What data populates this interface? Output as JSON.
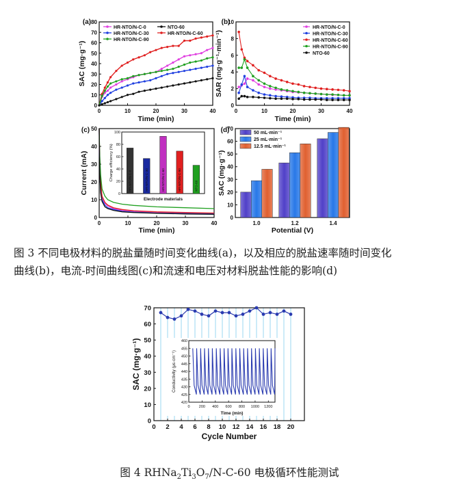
{
  "caption3": {
    "line1": "图 3  不同电极材料的脱盐量随时间变化曲线(a)，以及相应的脱盐速率随时间变化",
    "line2": "曲线(b)，电流-时间曲线图(c)和流速和电压对材料脱盐性能的影响(d)"
  },
  "caption4": {
    "prefix": "图 4 RHNa",
    "sub1": "2",
    "mid1": "Ti",
    "sub2": "3",
    "mid2": "O",
    "sub3": "7",
    "suffix": "/N-C-60 电极循环性能测试"
  },
  "colors": {
    "HR-NTO/N-C-0": "#e040e0",
    "HR-NTO/N-C-30": "#2040e0",
    "HR-NTO/N-C-60": "#e02020",
    "HR-NTO/N-C-90": "#20a020",
    "NTO-60": "#111111",
    "cycle": "#2a3bb0",
    "panel_d_50": "#5040c8",
    "panel_d_25": "#2878e8",
    "panel_d_12.5": "#e06030"
  },
  "chart_data": [
    {
      "id": "a",
      "panel_label": "(a)",
      "type": "line",
      "xlabel": "Time (min)",
      "ylabel": "SAC (mg·g⁻¹)",
      "xlim": [
        0,
        40
      ],
      "ylim": [
        0,
        80
      ],
      "xticks": [
        0,
        10,
        20,
        30,
        40
      ],
      "yticks": [
        0,
        10,
        20,
        30,
        40,
        50,
        60,
        70,
        80
      ],
      "legend_position": "top-left",
      "series": [
        {
          "name": "HR-NTO/N-C-0",
          "color": "#e040e0",
          "x": [
            0,
            1,
            2,
            3,
            4,
            6,
            8,
            10,
            12,
            14,
            16,
            18,
            20,
            22,
            24,
            26,
            28,
            30,
            32,
            34,
            36,
            38,
            40
          ],
          "y": [
            0,
            8,
            12,
            14,
            17,
            20,
            23,
            25,
            27,
            29,
            30,
            31,
            32,
            35,
            38,
            41,
            44,
            47,
            48,
            49,
            50,
            53,
            55
          ]
        },
        {
          "name": "HR-NTO/N-C-30",
          "color": "#2040e0",
          "x": [
            0,
            1,
            2,
            3,
            4,
            6,
            8,
            10,
            12,
            14,
            16,
            18,
            20,
            22,
            24,
            26,
            28,
            30,
            32,
            34,
            36,
            38,
            40
          ],
          "y": [
            0,
            4,
            7,
            10,
            12,
            15,
            17,
            19,
            21,
            22,
            23,
            24,
            26,
            28,
            30,
            31,
            32,
            33,
            34,
            35,
            36,
            37,
            38
          ]
        },
        {
          "name": "HR-NTO/N-C-60",
          "color": "#e02020",
          "x": [
            0,
            1,
            2,
            3,
            4,
            6,
            8,
            10,
            12,
            14,
            16,
            18,
            20,
            22,
            24,
            26,
            28,
            30,
            32,
            34,
            36,
            38,
            40
          ],
          "y": [
            0,
            11,
            17,
            22,
            27,
            33,
            38,
            41,
            44,
            46,
            48,
            51,
            53,
            55,
            56,
            57,
            57,
            62,
            62,
            64,
            65,
            66,
            67
          ]
        },
        {
          "name": "HR-NTO/N-C-90",
          "color": "#20a020",
          "x": [
            0,
            1,
            2,
            3,
            4,
            6,
            8,
            10,
            12,
            14,
            16,
            18,
            20,
            22,
            24,
            26,
            28,
            30,
            32,
            34,
            36,
            38,
            40
          ],
          "y": [
            0,
            9,
            14,
            18,
            21,
            23,
            25,
            26,
            28,
            29,
            30,
            31,
            32,
            33,
            34,
            35,
            37,
            39,
            41,
            42,
            43,
            45,
            46
          ]
        },
        {
          "name": "NTO-60",
          "color": "#111111",
          "x": [
            0,
            1,
            2,
            3,
            4,
            6,
            8,
            10,
            12,
            14,
            16,
            18,
            20,
            22,
            24,
            26,
            28,
            30,
            32,
            34,
            36,
            38,
            40
          ],
          "y": [
            0,
            1,
            2,
            3,
            4,
            6,
            8,
            10,
            11,
            13,
            14,
            15,
            16,
            17,
            18,
            19,
            20,
            21,
            22,
            23,
            24,
            25,
            26
          ]
        }
      ]
    },
    {
      "id": "b",
      "panel_label": "(b)",
      "type": "line",
      "xlabel": "Time (min)",
      "ylabel": "SAR (mg·g⁻¹·min⁻¹)",
      "xlim": [
        0,
        40
      ],
      "ylim": [
        0,
        10
      ],
      "xticks": [
        0,
        10,
        20,
        30,
        40
      ],
      "yticks": [
        0,
        2,
        4,
        6,
        8,
        10
      ],
      "legend_position": "top-right",
      "series": [
        {
          "name": "HR-NTO/N-C-0",
          "color": "#e040e0",
          "x": [
            1,
            2,
            3,
            4,
            6,
            8,
            10,
            12,
            14,
            16,
            18,
            20,
            22,
            24,
            26,
            28,
            30,
            32,
            34,
            36,
            38,
            40
          ],
          "y": [
            2.2,
            2.4,
            2.6,
            3.2,
            3.0,
            2.5,
            2.2,
            2.0,
            1.9,
            1.8,
            1.7,
            1.6,
            1.55,
            1.5,
            1.45,
            1.4,
            1.35,
            1.3,
            1.25,
            1.25,
            1.2,
            1.2
          ]
        },
        {
          "name": "HR-NTO/N-C-30",
          "color": "#2040e0",
          "x": [
            1,
            2,
            3,
            4,
            6,
            8,
            10,
            12,
            14,
            16,
            18,
            20,
            22,
            24,
            26,
            28,
            30,
            32,
            34,
            36,
            38,
            40
          ],
          "y": [
            1.5,
            2.5,
            3.5,
            2.2,
            1.8,
            1.5,
            1.3,
            1.2,
            1.1,
            1.05,
            1.0,
            0.95,
            0.9,
            0.9,
            0.9,
            0.85,
            0.85,
            0.85,
            0.85,
            0.85,
            0.85,
            0.85
          ]
        },
        {
          "name": "HR-NTO/N-C-60",
          "color": "#e02020",
          "x": [
            1,
            2,
            3,
            4,
            6,
            8,
            10,
            12,
            14,
            16,
            18,
            20,
            22,
            24,
            26,
            28,
            30,
            32,
            34,
            36,
            38,
            40
          ],
          "y": [
            8.8,
            6.7,
            5.7,
            5.3,
            4.8,
            4.2,
            3.9,
            3.5,
            3.2,
            3.0,
            2.8,
            2.6,
            2.5,
            2.3,
            2.2,
            2.1,
            2.0,
            1.95,
            1.9,
            1.85,
            1.8,
            1.7
          ]
        },
        {
          "name": "HR-NTO/N-C-90",
          "color": "#20a020",
          "x": [
            1,
            2,
            3,
            4,
            6,
            8,
            10,
            12,
            14,
            16,
            18,
            20,
            22,
            24,
            26,
            28,
            30,
            32,
            34,
            36,
            38,
            40
          ],
          "y": [
            4.5,
            4.5,
            5.5,
            4.5,
            3.5,
            3.0,
            2.6,
            2.3,
            2.1,
            1.9,
            1.8,
            1.7,
            1.6,
            1.5,
            1.45,
            1.4,
            1.35,
            1.3,
            1.3,
            1.25,
            1.2,
            1.2
          ]
        },
        {
          "name": "NTO-60",
          "color": "#111111",
          "x": [
            1,
            2,
            3,
            4,
            6,
            8,
            10,
            12,
            14,
            16,
            18,
            20,
            22,
            24,
            26,
            28,
            30,
            32,
            34,
            36,
            38,
            40
          ],
          "y": [
            0.8,
            1.1,
            1.1,
            1.0,
            1.0,
            0.95,
            0.9,
            0.85,
            0.8,
            0.8,
            0.8,
            0.75,
            0.75,
            0.7,
            0.7,
            0.7,
            0.7,
            0.65,
            0.65,
            0.65,
            0.65,
            0.65
          ]
        }
      ]
    },
    {
      "id": "c",
      "panel_label": "(c)",
      "type": "line",
      "xlabel": "Time (min)",
      "ylabel": "Current (mA)",
      "xlim": [
        0,
        40
      ],
      "ylim": [
        0,
        50
      ],
      "xticks": [
        0,
        10,
        20,
        30,
        40
      ],
      "yticks": [
        0,
        10,
        20,
        30,
        40,
        50
      ],
      "series": [
        {
          "name": "HR-NTO/N-C-0",
          "color": "#e040e0",
          "x": [
            0,
            0.2,
            0.5,
            1,
            2,
            3,
            5,
            8,
            12,
            20,
            30,
            40
          ],
          "y": [
            50,
            30,
            18,
            11,
            8,
            6.5,
            5,
            4,
            3.5,
            3,
            2.5,
            2.2
          ]
        },
        {
          "name": "HR-NTO/N-C-30",
          "color": "#2040e0",
          "x": [
            0,
            0.2,
            0.5,
            1,
            2,
            3,
            5,
            8,
            12,
            20,
            30,
            40
          ],
          "y": [
            50,
            28,
            16,
            10,
            7,
            5.5,
            4.5,
            3.5,
            3,
            2.5,
            2.2,
            2
          ]
        },
        {
          "name": "HR-NTO/N-C-60",
          "color": "#e02020",
          "x": [
            0,
            0.2,
            0.5,
            1,
            2,
            3,
            5,
            8,
            12,
            20,
            30,
            40
          ],
          "y": [
            50,
            32,
            20,
            12,
            8.5,
            7,
            5.5,
            4.5,
            3.8,
            3.2,
            2.8,
            2.5
          ]
        },
        {
          "name": "HR-NTO/N-C-90",
          "color": "#20a020",
          "x": [
            0,
            0.2,
            0.5,
            1,
            2,
            3,
            5,
            8,
            12,
            20,
            30,
            40
          ],
          "y": [
            50,
            35,
            24,
            16,
            12,
            10,
            8.5,
            7.5,
            6.8,
            6,
            5.5,
            5
          ]
        },
        {
          "name": "NTO-60",
          "color": "#111111",
          "x": [
            0,
            0.2,
            0.5,
            1,
            2,
            3,
            5,
            8,
            12,
            20,
            30,
            40
          ],
          "y": [
            50,
            25,
            14,
            9,
            6,
            5,
            4,
            3.2,
            2.8,
            2.4,
            2,
            1.8
          ]
        }
      ],
      "inset": {
        "type": "bar",
        "xlabel": "Electrode materials",
        "ylabel": "Charge efficiency (%)",
        "ylim": [
          0,
          100
        ],
        "yticks": [
          0,
          20,
          40,
          60,
          80,
          100
        ],
        "categories": [
          "HR-NTO/N-C-0",
          "HR-NTO/N-C-30",
          "HR-NTO/N-C-60",
          "HR-NTO/N-C-90",
          "NTO-60"
        ],
        "values": [
          74,
          57,
          93,
          69,
          46
        ],
        "colors": [
          "#333333",
          "#1a2aa0",
          "#c030c0",
          "#e02020",
          "#20a020"
        ]
      }
    },
    {
      "id": "d",
      "panel_label": "(d)",
      "type": "bar",
      "xlabel": "Potential (V)",
      "ylabel": "SAC (mg·g⁻¹)",
      "categories": [
        "1.0",
        "1.2",
        "1.4"
      ],
      "ylim": [
        0,
        70
      ],
      "yticks": [
        0,
        10,
        20,
        30,
        40,
        50,
        60,
        70
      ],
      "legend_position": "top-left",
      "series": [
        {
          "name": "50 mL·min⁻¹",
          "color": "#5040c8",
          "values": [
            20,
            43,
            62
          ]
        },
        {
          "name": "25 mL·min⁻¹",
          "color": "#2878e8",
          "values": [
            29,
            51,
            67
          ]
        },
        {
          "name": "12.5 mL·min⁻¹",
          "color": "#e06030",
          "values": [
            38,
            58,
            71
          ]
        }
      ]
    },
    {
      "id": "cycle",
      "type": "line",
      "xlabel": "Cycle Number",
      "ylabel": "SAC (mg·g⁻¹)",
      "xlim": [
        0,
        22
      ],
      "ylim": [
        0,
        70
      ],
      "xticks": [
        0,
        2,
        4,
        6,
        8,
        10,
        12,
        14,
        16,
        18,
        20
      ],
      "yticks": [
        0,
        10,
        20,
        30,
        40,
        50,
        60,
        70
      ],
      "x": [
        1,
        2,
        3,
        4,
        5,
        6,
        7,
        8,
        9,
        10,
        11,
        12,
        13,
        14,
        15,
        16,
        17,
        18,
        19,
        20
      ],
      "y": [
        67,
        64,
        63,
        65,
        69,
        68,
        66,
        65,
        68,
        67,
        67,
        65,
        66,
        68,
        70,
        66,
        67,
        66,
        68,
        66
      ],
      "inset": {
        "type": "line",
        "xlabel": "Time (min)",
        "ylabel": "Conductivity (μs·cm⁻¹)",
        "xlim": [
          0,
          1300
        ],
        "ylim": [
          420,
          460
        ],
        "xticks": [
          0,
          200,
          400,
          600,
          800,
          1000,
          1200
        ],
        "yticks": [
          420,
          425,
          430,
          435,
          440,
          445,
          450,
          455,
          460
        ],
        "cycles": 21,
        "max": 455,
        "min": 425
      }
    }
  ]
}
